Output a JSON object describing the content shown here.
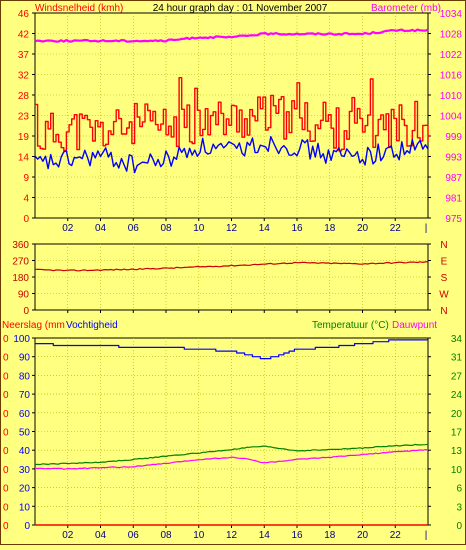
{
  "header": {
    "left_label": "Windsnelheid (kmh)",
    "title": "24 hour graph day : 01 November 2007",
    "right_label": "Barometer (mb)"
  },
  "colors": {
    "background": "#ffff80",
    "axis_text": "#6b3a00",
    "wind_gust": "#ff0000",
    "wind_avg": "#0000ff",
    "barometer": "#ff00ff",
    "winddir": "#c80000",
    "humidity": "#0000ff",
    "temperature": "#008000",
    "dewpoint": "#ff00ff",
    "rain": "#ff0000",
    "grid": "#b0b000"
  },
  "x_ticks": [
    "02",
    "04",
    "06",
    "08",
    "10",
    "12",
    "14",
    "16",
    "18",
    "20",
    "22"
  ],
  "x_end_label": "|",
  "chart_data": [
    {
      "type": "line",
      "panel": "wind-barometer",
      "ylabel": "Windsnelheid (kmh)",
      "y2label": "Barometer (mb)",
      "ylim": [
        0,
        46
      ],
      "y_ticks": [
        "0",
        "4",
        "9",
        "14",
        "19",
        "23",
        "28",
        "32",
        "37",
        "42",
        "46"
      ],
      "y2lim": [
        975,
        1034
      ],
      "y2_ticks": [
        "975",
        "981",
        "987",
        "993",
        "999",
        "1004",
        "1010",
        "1016",
        "1022",
        "1028",
        "1034"
      ],
      "grid": true,
      "x": [
        0,
        2,
        4,
        6,
        8,
        10,
        12,
        14,
        16,
        18,
        20,
        22,
        24
      ],
      "series": [
        {
          "key": "gust",
          "axis": "left",
          "step": true,
          "values": [
            18,
            20,
            19,
            21,
            20,
            22,
            22,
            23,
            22,
            20,
            20,
            21,
            21
          ]
        },
        {
          "key": "avg",
          "axis": "left",
          "values": [
            12,
            13,
            14,
            12,
            13,
            16,
            15,
            17,
            16,
            14,
            14,
            15,
            16
          ]
        },
        {
          "key": "barometer",
          "axis": "right",
          "values": [
            1026,
            1026,
            1026,
            1026,
            1026,
            1027,
            1027,
            1028,
            1028,
            1028,
            1028,
            1029,
            1029
          ]
        }
      ]
    },
    {
      "type": "line",
      "panel": "wind-direction",
      "ylim": [
        0,
        360
      ],
      "y_ticks": [
        "0",
        "90",
        "180",
        "270",
        "360"
      ],
      "y2_ticks": [
        "N",
        "W",
        "S",
        "E",
        "N"
      ],
      "grid": true,
      "x": [
        0,
        2,
        4,
        6,
        8,
        10,
        12,
        14,
        16,
        18,
        20,
        22,
        24
      ],
      "series": [
        {
          "key": "direction",
          "values": [
            220,
            215,
            218,
            222,
            228,
            235,
            242,
            250,
            258,
            255,
            252,
            258,
            262
          ]
        }
      ]
    },
    {
      "type": "line",
      "panel": "rain-humidity-temperature",
      "ylabel": "Neerslag (mm",
      "ylabel2": "Vochtigheid",
      "y2label": "Temperatuur (°C)",
      "y2label2": "Dauwpunt",
      "ylim": [
        0,
        100
      ],
      "y_ticks": [
        "0",
        "10",
        "20",
        "30",
        "40",
        "50",
        "60",
        "70",
        "80",
        "90",
        "100"
      ],
      "y_ticks_rain": [
        "0",
        "0",
        "0",
        "0",
        "0",
        "0",
        "0",
        "0",
        "0",
        "0",
        "0"
      ],
      "y2lim": [
        0,
        34
      ],
      "y2_ticks": [
        "0",
        "3",
        "6",
        "10",
        "13",
        "17",
        "20",
        "24",
        "27",
        "31",
        "34"
      ],
      "grid": true,
      "x": [
        0,
        2,
        4,
        6,
        8,
        10,
        12,
        13,
        14,
        15,
        16,
        18,
        20,
        22,
        24
      ],
      "series": [
        {
          "key": "humidity",
          "axis": "left",
          "values": [
            97,
            96,
            96,
            95,
            95,
            94,
            93,
            91,
            89,
            91,
            94,
            95,
            97,
            99,
            99
          ]
        },
        {
          "key": "temperature",
          "axis": "right",
          "values": [
            11.0,
            11.2,
            11.4,
            11.9,
            12.5,
            13.1,
            13.7,
            14.1,
            14.3,
            13.9,
            13.5,
            13.7,
            14.0,
            14.4,
            14.7
          ]
        },
        {
          "key": "dewpoint",
          "axis": "right",
          "values": [
            10.3,
            10.2,
            10.4,
            10.6,
            11.2,
            11.9,
            12.3,
            12.0,
            11.3,
            11.6,
            11.9,
            12.3,
            12.8,
            13.3,
            13.7
          ]
        },
        {
          "key": "rain",
          "axis": "left",
          "values": [
            0,
            0,
            0,
            0,
            0,
            0,
            0,
            0,
            0,
            0,
            0,
            0,
            0,
            0,
            0
          ]
        }
      ]
    }
  ]
}
